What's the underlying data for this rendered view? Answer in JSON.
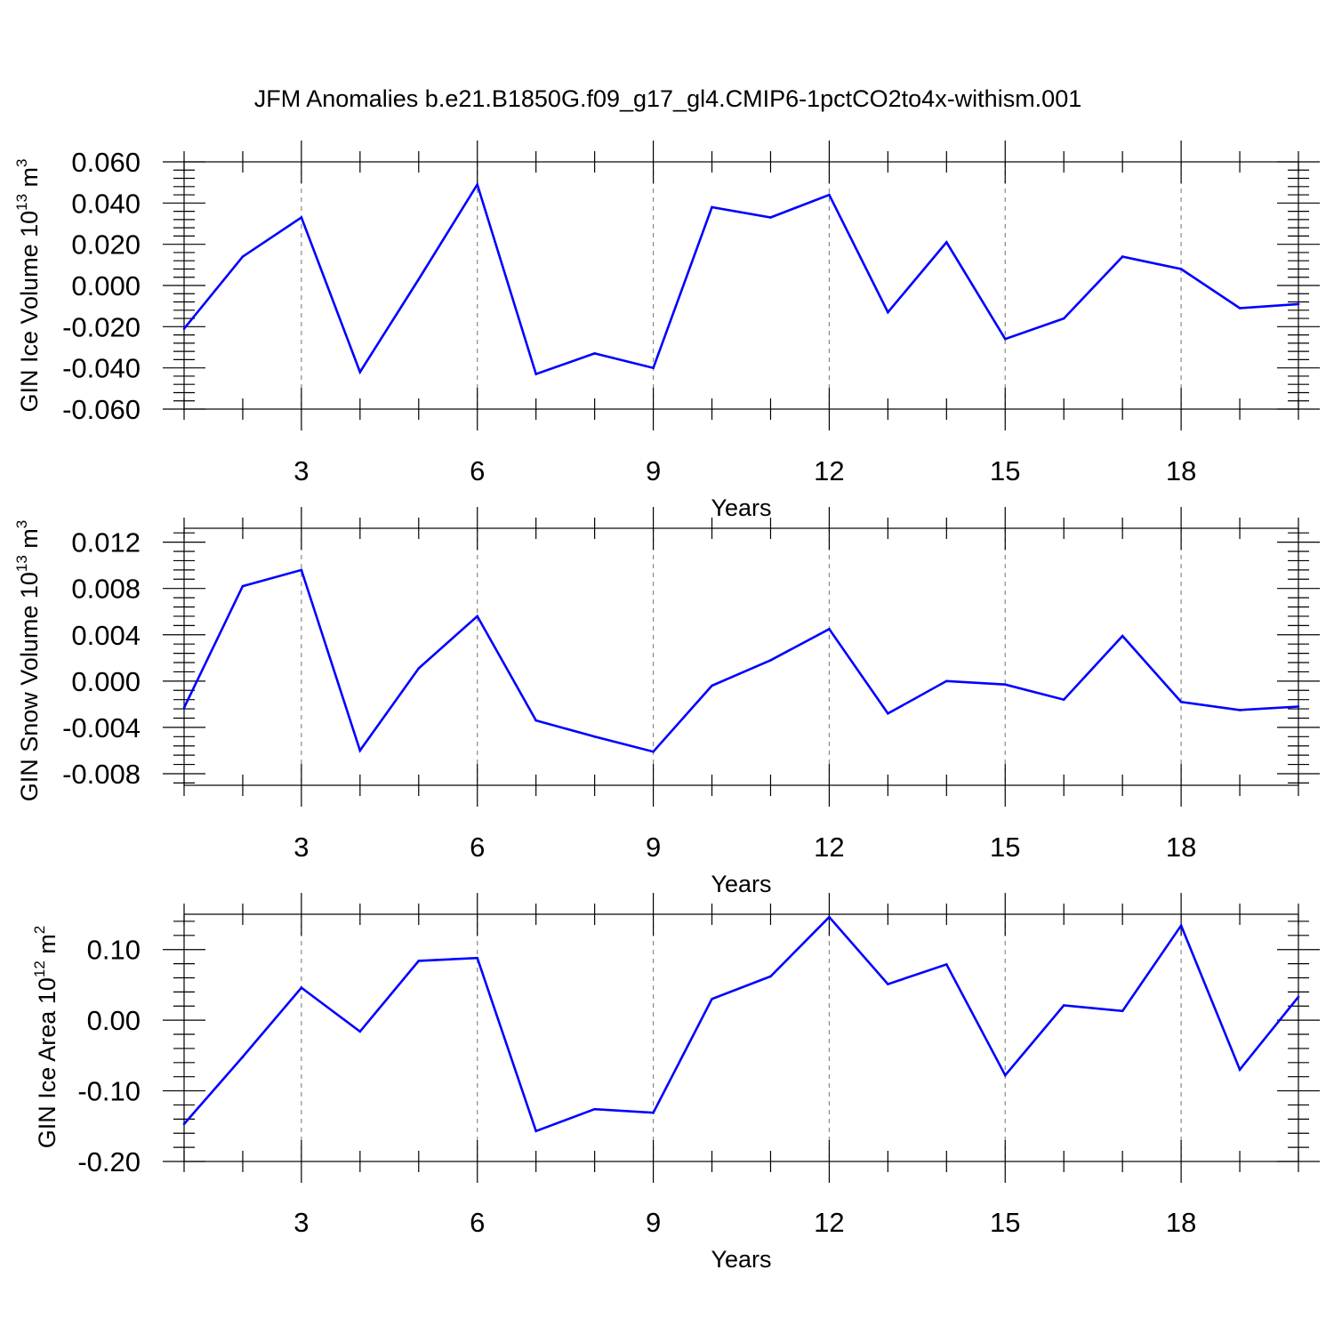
{
  "title": "JFM Anomalies b.e21.B1850G.f09_g17_gl4.CMIP6-1pctCO2to4x-withism.001",
  "colors": {
    "line": "#0000ff",
    "grid": "#888888"
  },
  "chart_data": [
    {
      "type": "line",
      "xlabel": "Years",
      "ylabel": {
        "main": "GIN Ice Volume 10",
        "sup": "13",
        "unit": " m",
        "unit_sup": "3"
      },
      "xlim": [
        1,
        20
      ],
      "ylim": [
        -0.06,
        0.06
      ],
      "xticks": [
        3,
        6,
        9,
        12,
        15,
        18
      ],
      "xtick_labels": [
        "3",
        "6",
        "9",
        "12",
        "15",
        "18"
      ],
      "yticks": [
        -0.06,
        -0.04,
        -0.02,
        0,
        0.02,
        0.04,
        0.06
      ],
      "ytick_labels": [
        "-0.060",
        "-0.040",
        "-0.020",
        "0.000",
        "0.020",
        "0.040",
        "0.060"
      ],
      "grid": "x-dashed",
      "x": [
        1,
        2,
        3,
        4,
        5,
        6,
        7,
        8,
        9,
        10,
        11,
        12,
        13,
        14,
        15,
        16,
        17,
        18,
        19,
        20
      ],
      "values": [
        -0.021,
        0.014,
        0.033,
        -0.042,
        0.003,
        0.049,
        -0.043,
        -0.033,
        -0.04,
        0.038,
        0.033,
        0.044,
        -0.013,
        0.021,
        -0.026,
        -0.016,
        0.014,
        0.008,
        -0.011,
        -0.009
      ]
    },
    {
      "type": "line",
      "xlabel": "Years",
      "ylabel": {
        "main": "GIN Snow Volume 10",
        "sup": "13",
        "unit": " m",
        "unit_sup": "3"
      },
      "xlim": [
        1,
        20
      ],
      "ylim": [
        -0.009,
        0.0132
      ],
      "xticks": [
        3,
        6,
        9,
        12,
        15,
        18
      ],
      "xtick_labels": [
        "3",
        "6",
        "9",
        "12",
        "15",
        "18"
      ],
      "yticks": [
        -0.008,
        -0.004,
        0,
        0.004,
        0.008,
        0.012
      ],
      "ytick_labels": [
        "-0.008",
        "-0.004",
        "0.000",
        "0.004",
        "0.008",
        "0.012"
      ],
      "grid": "x-dashed",
      "x": [
        1,
        2,
        3,
        4,
        5,
        6,
        7,
        8,
        9,
        10,
        11,
        12,
        13,
        14,
        15,
        16,
        17,
        18,
        19,
        20
      ],
      "values": [
        -0.0023,
        0.0082,
        0.0096,
        -0.006,
        0.0011,
        0.0056,
        -0.0034,
        -0.0048,
        -0.0061,
        -0.0004,
        0.0018,
        0.0045,
        -0.0028,
        0.0,
        -0.0003,
        -0.0016,
        0.0039,
        -0.0018,
        -0.0025,
        -0.0022
      ]
    },
    {
      "type": "line",
      "xlabel": "Years",
      "ylabel": {
        "main": "GIN Ice Area 10",
        "sup": "12",
        "unit": " m",
        "unit_sup": "2"
      },
      "xlim": [
        1,
        20
      ],
      "ylim": [
        -0.2,
        0.15
      ],
      "xticks": [
        3,
        6,
        9,
        12,
        15,
        18
      ],
      "xtick_labels": [
        "3",
        "6",
        "9",
        "12",
        "15",
        "18"
      ],
      "yticks": [
        -0.2,
        -0.1,
        0,
        0.1
      ],
      "ytick_labels": [
        "-0.20",
        "-0.10",
        "0.00",
        "0.10"
      ],
      "grid": "x-dashed",
      "x": [
        1,
        2,
        3,
        4,
        5,
        6,
        7,
        8,
        9,
        10,
        11,
        12,
        13,
        14,
        15,
        16,
        17,
        18,
        19,
        20
      ],
      "values": [
        -0.147,
        -0.052,
        0.046,
        -0.016,
        0.084,
        0.088,
        -0.157,
        -0.126,
        -0.131,
        0.03,
        0.062,
        0.146,
        0.051,
        0.079,
        -0.078,
        0.021,
        0.013,
        0.134,
        -0.07,
        0.033
      ]
    }
  ]
}
